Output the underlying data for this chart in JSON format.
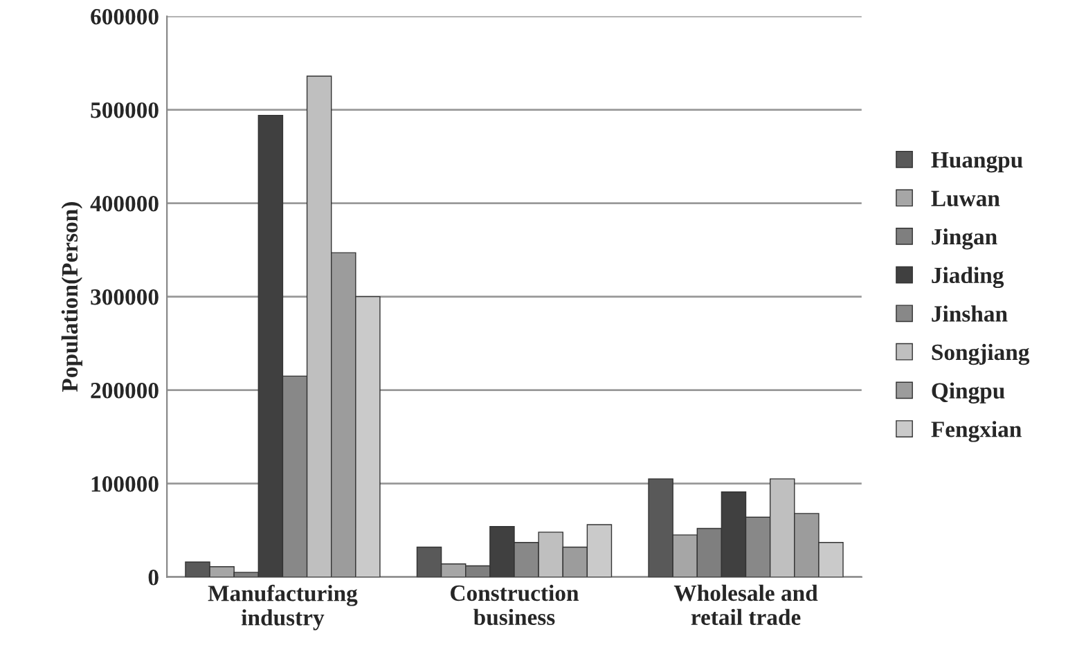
{
  "chart_data": {
    "type": "bar",
    "ylabel": "Population(Person)",
    "categories": [
      "Manufacturing\nindustry",
      "Construction\nbusiness",
      "Wholesale and\nretail trade"
    ],
    "series": [
      {
        "name": "Huangpu",
        "color": "#595959",
        "values": [
          16000,
          32000,
          105000
        ]
      },
      {
        "name": "Luwan",
        "color": "#a6a6a6",
        "values": [
          11000,
          14000,
          45000
        ]
      },
      {
        "name": "Jingan",
        "color": "#7f7f7f",
        "values": [
          5000,
          12000,
          52000
        ]
      },
      {
        "name": "Jiading",
        "color": "#404040",
        "values": [
          494000,
          54000,
          91000
        ]
      },
      {
        "name": "Jinshan",
        "color": "#888888",
        "values": [
          215000,
          37000,
          64000
        ]
      },
      {
        "name": "Songjiang",
        "color": "#bfbfbf",
        "values": [
          536000,
          48000,
          105000
        ]
      },
      {
        "name": "Qingpu",
        "color": "#9c9c9c",
        "values": [
          347000,
          32000,
          68000
        ]
      },
      {
        "name": "Fengxian",
        "color": "#cacaca",
        "values": [
          300000,
          56000,
          37000
        ]
      }
    ],
    "ylim": [
      0,
      600000
    ],
    "yticks": [
      0,
      100000,
      200000,
      300000,
      400000,
      500000,
      600000
    ],
    "grid": "y",
    "legend": "right"
  }
}
